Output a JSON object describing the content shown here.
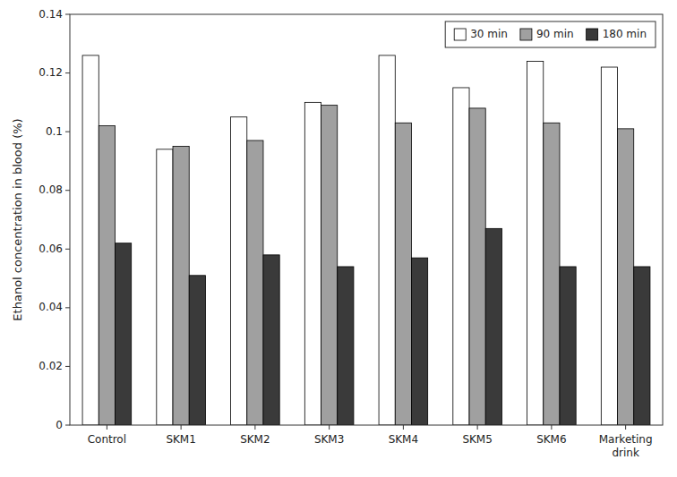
{
  "chart_data": {
    "type": "bar",
    "categories": [
      "Control",
      "SKM1",
      "SKM2",
      "SKM3",
      "SKM4",
      "SKM5",
      "SKM6",
      "Marketing\ndrink"
    ],
    "series": [
      {
        "name": "30 min",
        "color": "#ffffff",
        "values": [
          0.126,
          0.094,
          0.105,
          0.11,
          0.126,
          0.115,
          0.124,
          0.122
        ]
      },
      {
        "name": "90 min",
        "color": "#a0a0a0",
        "values": [
          0.102,
          0.095,
          0.097,
          0.109,
          0.103,
          0.108,
          0.103,
          0.101
        ]
      },
      {
        "name": "180 min",
        "color": "#3a3a3a",
        "values": [
          0.062,
          0.051,
          0.058,
          0.054,
          0.057,
          0.067,
          0.054,
          0.054
        ]
      }
    ],
    "ylabel": "Ethanol concentration in blood (%)",
    "ylim": [
      0,
      0.14
    ],
    "yticks": [
      0,
      0.02,
      0.04,
      0.06,
      0.08,
      0.1,
      0.12,
      0.14
    ],
    "grid": false,
    "legend": "upper right"
  }
}
